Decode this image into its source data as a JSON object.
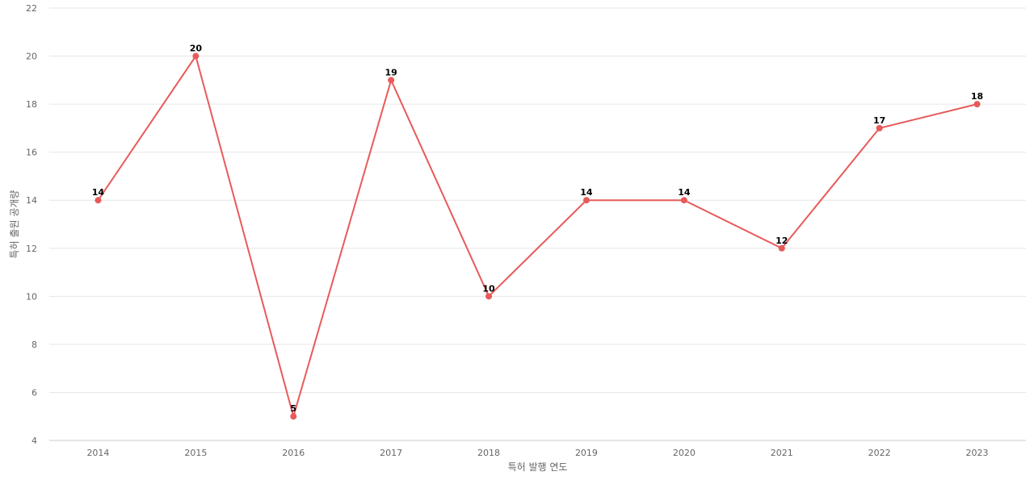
{
  "chart_data": {
    "type": "line",
    "title": "",
    "xlabel": "특허 발행 연도",
    "ylabel": "특허 출원 공개량",
    "categories": [
      "2014",
      "2015",
      "2016",
      "2017",
      "2018",
      "2019",
      "2020",
      "2021",
      "2022",
      "2023"
    ],
    "series": [
      {
        "values": [
          14,
          20,
          5,
          19,
          10,
          14,
          14,
          12,
          17,
          18
        ],
        "color": "#e85a5a"
      }
    ],
    "ylim": [
      4,
      22
    ],
    "yticks": [
      4,
      6,
      8,
      10,
      12,
      14,
      16,
      18,
      20,
      22
    ],
    "grid": true,
    "data_labels": true
  }
}
